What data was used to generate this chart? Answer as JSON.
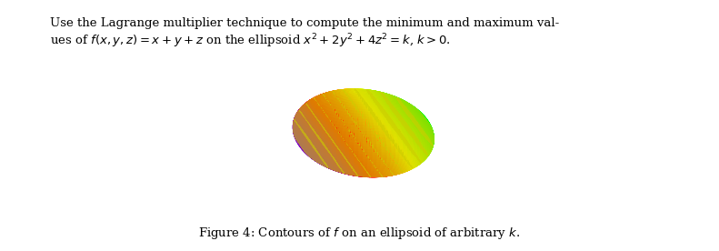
{
  "title_text": "Use the Lagrange multiplier technique to compute the minimum and maximum val-\nues of $f(x, y, z) = x + y + z$ on the ellipsoid $x^2 + 2y^2 + 4z^2 = k$, $k > 0$.",
  "caption": "Figure 4: Contours of $f$ on an ellipsoid of arbitrary $k$.",
  "ellipsoid_a": 1.0,
  "ellipsoid_b": 0.707,
  "ellipsoid_c": 0.5,
  "view_elev": 20,
  "view_azim": -60,
  "bg_color": "#ffffff",
  "cmap": "hsv",
  "contour_levels": 12,
  "contour_color": "#aaaa00",
  "contour_alpha": 0.5,
  "contour_lw": 0.7
}
